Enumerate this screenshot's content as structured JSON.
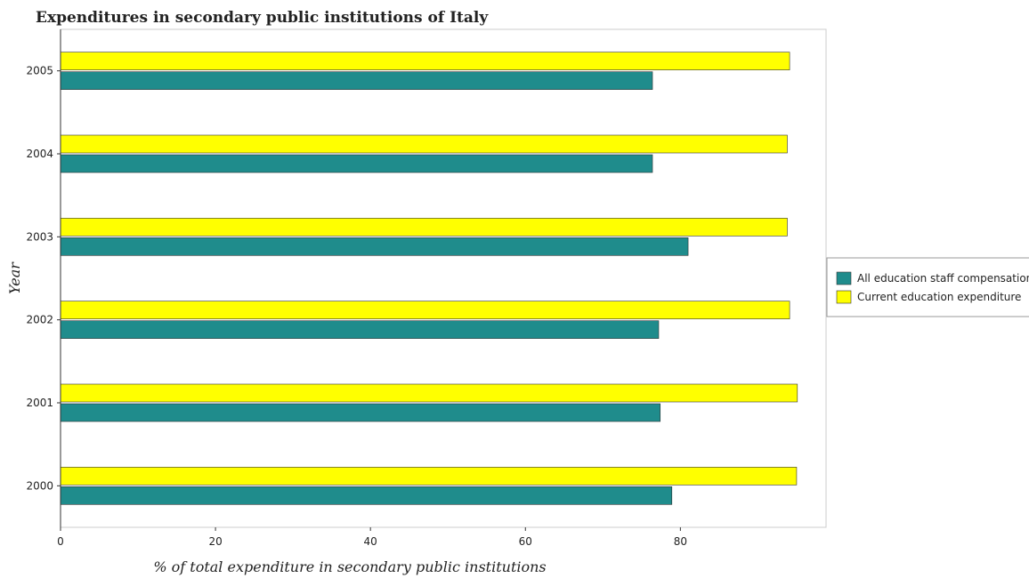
{
  "chart_data": {
    "type": "bar",
    "orientation": "horizontal",
    "title": "Expenditures in secondary public institutions of Italy",
    "xlabel": "% of total expenditure in secondary public institutions",
    "ylabel": "Year",
    "categories": [
      "2000",
      "2001",
      "2002",
      "2003",
      "2004",
      "2005"
    ],
    "series": [
      {
        "name": "All education staff compensation",
        "color": "#1f8c8c",
        "values": [
          78.9,
          77.4,
          77.2,
          81.0,
          76.4,
          76.4
        ]
      },
      {
        "name": "Current education expenditure",
        "color": "#ffff00",
        "values": [
          95.0,
          95.1,
          94.1,
          93.8,
          93.8,
          94.1
        ]
      }
    ],
    "xticks": [
      "0",
      "20",
      "40",
      "60",
      "80"
    ],
    "xlim": [
      0,
      98.8
    ],
    "grid": false,
    "legend_position": "right"
  }
}
